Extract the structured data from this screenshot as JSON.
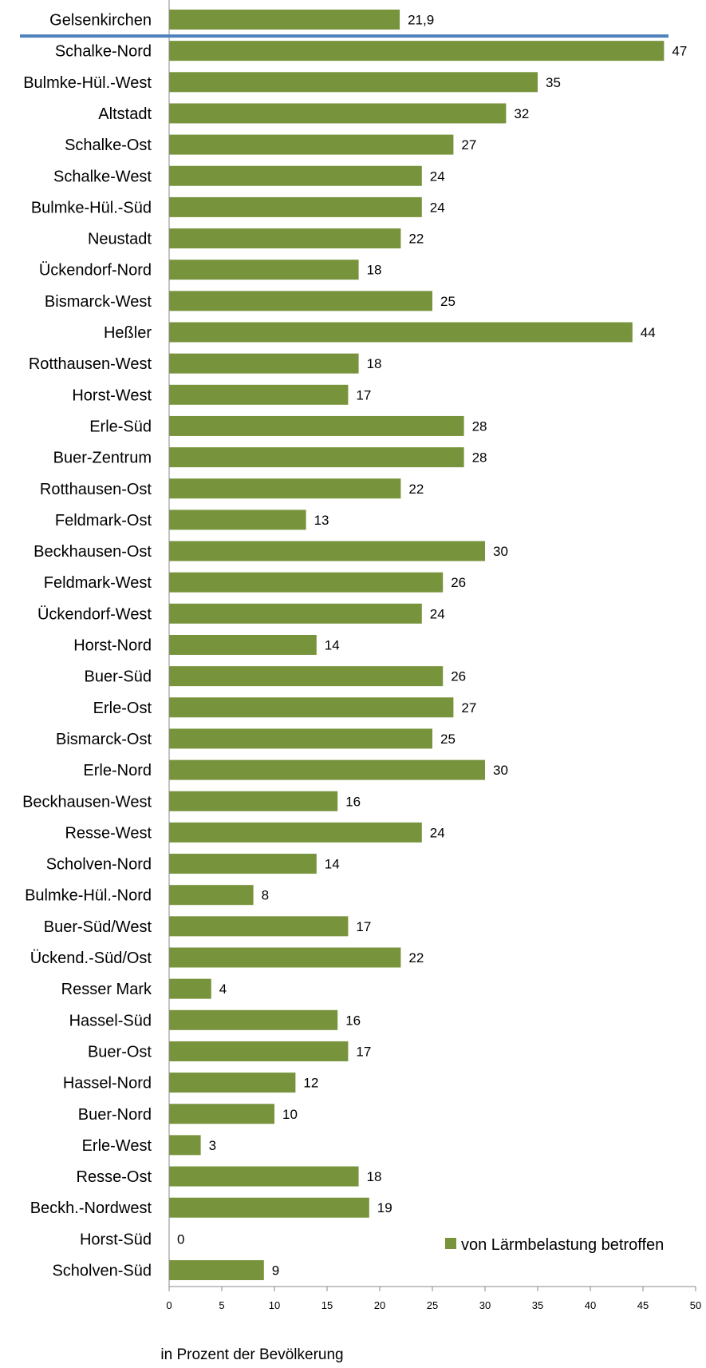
{
  "chart_data": {
    "type": "bar",
    "orientation": "horizontal",
    "categories": [
      "Gelsenkirchen",
      "Schalke-Nord",
      "Bulmke-Hül.-West",
      "Altstadt",
      "Schalke-Ost",
      "Schalke-West",
      "Bulmke-Hül.-Süd",
      "Neustadt",
      "Ückendorf-Nord",
      "Bismarck-West",
      "Heßler",
      "Rotthausen-West",
      "Horst-West",
      "Erle-Süd",
      "Buer-Zentrum",
      "Rotthausen-Ost",
      "Feldmark-Ost",
      "Beckhausen-Ost",
      "Feldmark-West",
      "Ückendorf-West",
      "Horst-Nord",
      "Buer-Süd",
      "Erle-Ost",
      "Bismarck-Ost",
      "Erle-Nord",
      "Beckhausen-West",
      "Resse-West",
      "Scholven-Nord",
      "Bulmke-Hül.-Nord",
      "Buer-Süd/West",
      "Ückend.-Süd/Ost",
      "Resser Mark",
      "Hassel-Süd",
      "Buer-Ost",
      "Hassel-Nord",
      "Buer-Nord",
      "Erle-West",
      "Resse-Ost",
      "Beckh.-Nordwest",
      "Horst-Süd",
      "Scholven-Süd"
    ],
    "series": [
      {
        "name": "von Lärmbelastung betroffen",
        "values": [
          21.9,
          47,
          35,
          32,
          27,
          24,
          24,
          22,
          18,
          25,
          44,
          18,
          17,
          28,
          28,
          22,
          13,
          30,
          26,
          24,
          14,
          26,
          27,
          25,
          30,
          16,
          24,
          14,
          8,
          17,
          22,
          4,
          16,
          17,
          12,
          10,
          3,
          18,
          19,
          0,
          9
        ],
        "value_labels": [
          "21,9",
          "47",
          "35",
          "32",
          "27",
          "24",
          "24",
          "22",
          "18",
          "25",
          "44",
          "18",
          "17",
          "28",
          "28",
          "22",
          "13",
          "30",
          "26",
          "24",
          "14",
          "26",
          "27",
          "25",
          "30",
          "16",
          "24",
          "14",
          "8",
          "17",
          "22",
          "4",
          "16",
          "17",
          "12",
          "10",
          "3",
          "18",
          "19",
          "0",
          "9"
        ],
        "color": "#77933c"
      }
    ],
    "reference_line": {
      "after_category": "Gelsenkirchen",
      "color": "#4f81bd"
    },
    "xlim": [
      0,
      50
    ],
    "xticks": [
      0,
      5,
      10,
      15,
      20,
      25,
      30,
      35,
      40,
      45,
      50
    ],
    "xlabel": "in Prozent der Bevölkerung",
    "legend_position": "bottom-right",
    "grid": false
  }
}
